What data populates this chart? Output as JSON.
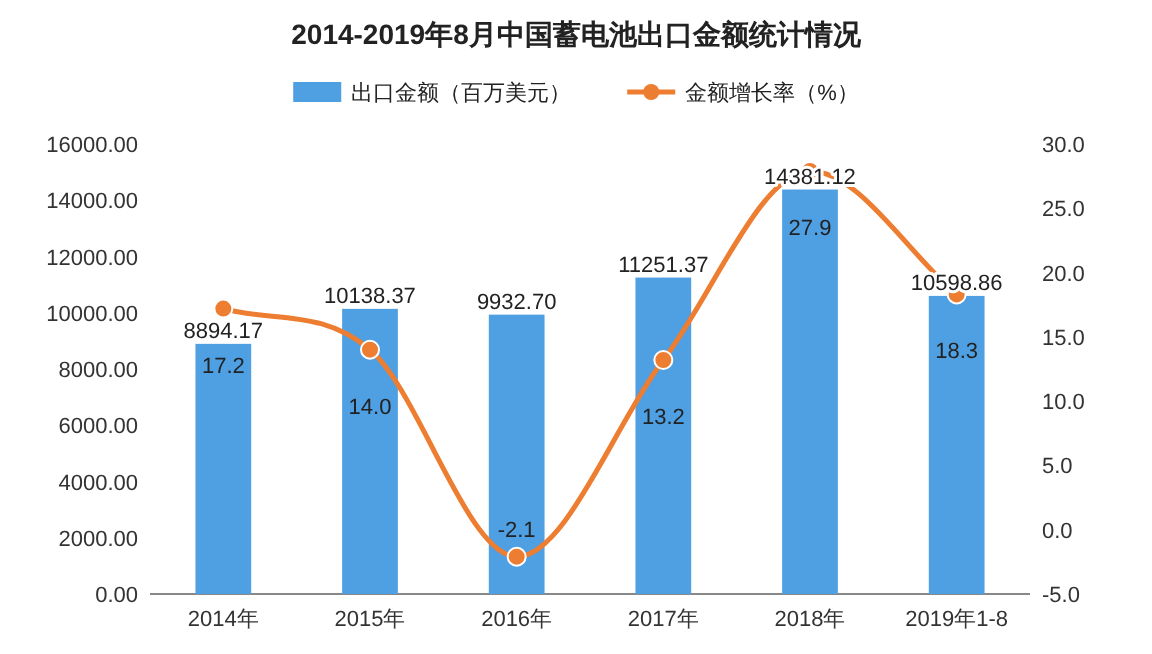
{
  "chart_data": {
    "type": "bar",
    "title": "2014-2019年8月中国蓄电池出口金额统计情况",
    "categories": [
      "2014年",
      "2015年",
      "2016年",
      "2017年",
      "2018年",
      "2019年1-8"
    ],
    "series": [
      {
        "name": "出口金额（百万美元）",
        "type": "bar",
        "color": "#4f9fe3",
        "values": [
          8894.17,
          10138.37,
          9932.7,
          11251.37,
          14381.12,
          10598.86
        ],
        "value_labels": [
          "8894.17",
          "10138.37",
          "9932.70",
          "11251.37",
          "14381.12",
          "10598.86"
        ]
      },
      {
        "name": "金额增长率（%）",
        "type": "line",
        "axis": "y2",
        "color": "#ed7d31",
        "values": [
          17.2,
          14.0,
          -2.1,
          13.2,
          27.9,
          18.3
        ],
        "value_labels": [
          "17.2",
          "14.0",
          "-2.1",
          "13.2",
          "27.9",
          "18.3"
        ]
      }
    ],
    "ylim": [
      0,
      16000
    ],
    "yticks": [
      {
        "value": 0,
        "label": "0.00"
      },
      {
        "value": 2000,
        "label": "2000.00"
      },
      {
        "value": 4000,
        "label": "4000.00"
      },
      {
        "value": 6000,
        "label": "6000.00"
      },
      {
        "value": 8000,
        "label": "8000.00"
      },
      {
        "value": 10000,
        "label": "10000.00"
      },
      {
        "value": 12000,
        "label": "12000.00"
      },
      {
        "value": 14000,
        "label": "14000.00"
      },
      {
        "value": 16000,
        "label": "16000.00"
      }
    ],
    "y2lim": [
      -5,
      30
    ],
    "y2ticks": [
      {
        "value": -5,
        "label": "-5.0"
      },
      {
        "value": 0,
        "label": "0.0"
      },
      {
        "value": 5,
        "label": "5.0"
      },
      {
        "value": 10,
        "label": "10.0"
      },
      {
        "value": 15,
        "label": "15.0"
      },
      {
        "value": 20,
        "label": "20.0"
      },
      {
        "value": 25,
        "label": "25.0"
      },
      {
        "value": 30,
        "label": "30.0"
      }
    ],
    "legend": "top",
    "marker": "circle"
  }
}
